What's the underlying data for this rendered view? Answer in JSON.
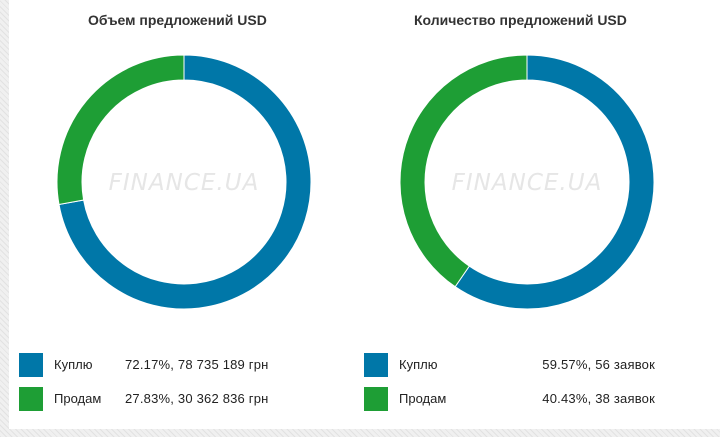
{
  "chart_data": [
    {
      "type": "pie",
      "donut": true,
      "title": "Объем предложений USD",
      "watermark": "FINANCE.UA",
      "start_angle_deg": 0,
      "direction": "clockwise",
      "series": [
        {
          "name": "Куплю",
          "value": 72.17,
          "label": "72.17%, 78 735 189 грн",
          "color": "#0077a8"
        },
        {
          "name": "Продам",
          "value": 27.83,
          "label": "27.83%, 30 362 836 грн",
          "color": "#1e9e35"
        }
      ]
    },
    {
      "type": "pie",
      "donut": true,
      "title": "Количество предложений USD",
      "watermark": "FINANCE.UA",
      "start_angle_deg": 0,
      "direction": "clockwise",
      "series": [
        {
          "name": "Куплю",
          "value": 59.57,
          "label": "59.57%, 56 заявок",
          "color": "#0077a8"
        },
        {
          "name": "Продам",
          "value": 40.43,
          "label": "40.43%, 38 заявок",
          "color": "#1e9e35"
        }
      ]
    }
  ]
}
